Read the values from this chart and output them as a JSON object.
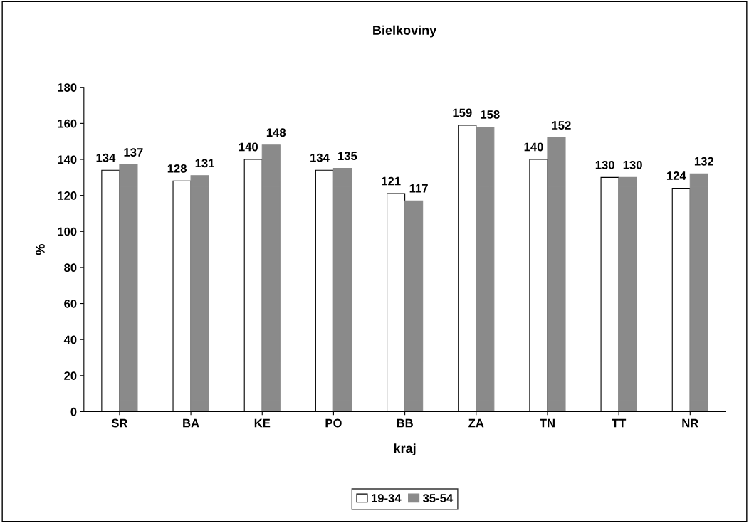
{
  "chart_data": {
    "type": "bar",
    "title": "Bielkoviny",
    "xlabel": "kraj",
    "ylabel": "%",
    "categories": [
      "SR",
      "BA",
      "KE",
      "PO",
      "BB",
      "ZA",
      "TN",
      "TT",
      "NR"
    ],
    "series": [
      {
        "name": "19-34",
        "color": "#ffffff",
        "values": [
          134,
          128,
          140,
          134,
          121,
          159,
          140,
          130,
          124
        ]
      },
      {
        "name": "35-54",
        "color": "#8a8a8a",
        "values": [
          137,
          131,
          148,
          135,
          117,
          158,
          152,
          130,
          132
        ]
      }
    ],
    "ylim": [
      0,
      180
    ],
    "yticks": [
      0,
      20,
      40,
      60,
      80,
      100,
      120,
      140,
      160,
      180
    ],
    "data_labels": true,
    "grid": false,
    "legend": "bottom"
  }
}
